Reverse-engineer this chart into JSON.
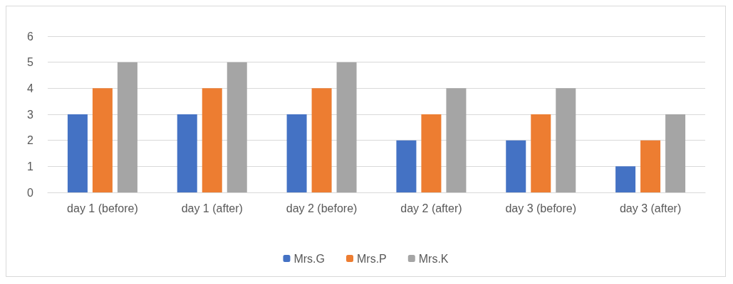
{
  "chart_data": {
    "type": "bar",
    "categories": [
      "day 1 (before)",
      "day 1 (after)",
      "day 2 (before)",
      "day 2 (after)",
      "day 3 (before)",
      "day 3 (after)"
    ],
    "series": [
      {
        "name": "Mrs.G",
        "color": "#4472c4",
        "values": [
          3,
          3,
          3,
          2,
          2,
          1
        ]
      },
      {
        "name": "Mrs.P",
        "color": "#ed7d31",
        "values": [
          4,
          4,
          4,
          3,
          3,
          2
        ]
      },
      {
        "name": "Mrs.K",
        "color": "#a5a5a5",
        "values": [
          5,
          5,
          5,
          4,
          4,
          3
        ]
      }
    ],
    "ylim": [
      0,
      6
    ],
    "yticks": [
      0,
      1,
      2,
      3,
      4,
      5,
      6
    ],
    "grid": "y",
    "legend": "bottom"
  }
}
